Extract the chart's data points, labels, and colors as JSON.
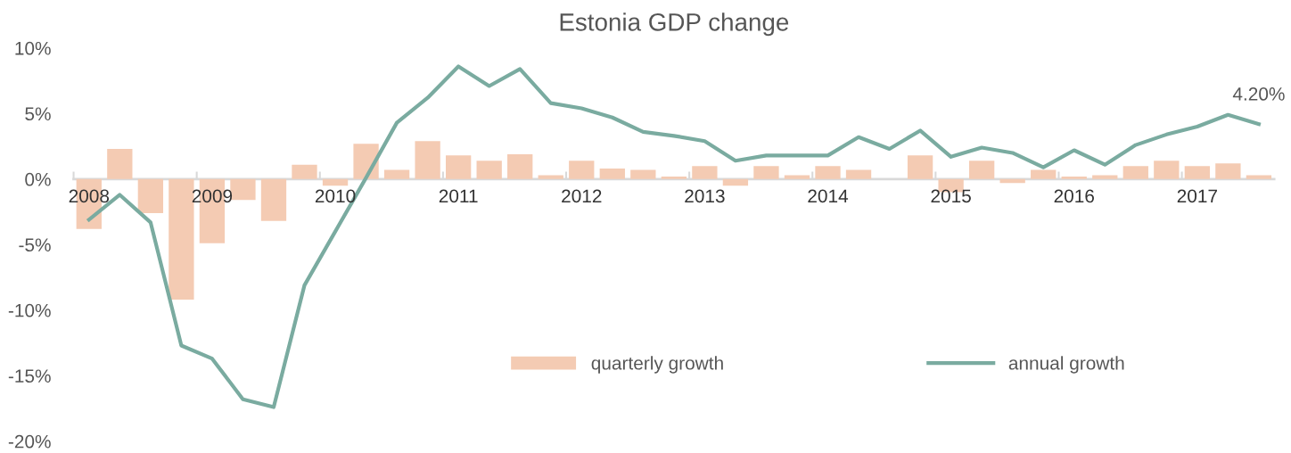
{
  "chart_data": {
    "type": "bar",
    "title": "Estonia GDP change",
    "categories": [
      "2008",
      null,
      null,
      null,
      "2009",
      null,
      null,
      null,
      "2010",
      null,
      null,
      null,
      "2011",
      null,
      null,
      null,
      "2012",
      null,
      null,
      null,
      "2013",
      null,
      null,
      null,
      "2014",
      null,
      null,
      null,
      "2015",
      null,
      null,
      null,
      "2016",
      null,
      null,
      null,
      "2017",
      null,
      null
    ],
    "series": [
      {
        "name": "quarterly growth",
        "color": "#f4cbb3",
        "values": [
          -3.8,
          2.3,
          -2.6,
          -9.2,
          -4.9,
          -1.6,
          -3.2,
          1.1,
          -0.5,
          2.7,
          0.7,
          2.9,
          1.8,
          1.4,
          1.9,
          0.3,
          1.4,
          0.8,
          0.7,
          0.2,
          1.0,
          -0.5,
          1.0,
          0.3,
          1.0,
          0.7,
          0,
          1.8,
          -1.0,
          1.4,
          -0.3,
          0.7,
          0.2,
          0.3,
          1.0,
          1.4,
          1.0,
          1.2,
          0.3
        ]
      },
      {
        "name": "annual growth",
        "type": "line",
        "color": "#7aaba0",
        "values": [
          -3.1,
          -1.2,
          -3.3,
          -12.7,
          -13.7,
          -16.8,
          -17.4,
          -8.1,
          -4.0,
          0.1,
          4.3,
          6.2,
          8.6,
          7.1,
          8.4,
          5.8,
          5.4,
          4.7,
          3.6,
          3.3,
          2.9,
          1.4,
          1.8,
          1.8,
          1.8,
          3.2,
          2.3,
          3.7,
          1.7,
          2.4,
          2.0,
          0.9,
          2.2,
          1.1,
          2.6,
          3.4,
          4.0,
          4.9,
          4.2
        ]
      }
    ],
    "ylim": [
      -20,
      10
    ],
    "yticks": [
      {
        "value": -20,
        "label": "-20%"
      },
      {
        "value": -15,
        "label": "-15%"
      },
      {
        "value": -10,
        "label": "-10%"
      },
      {
        "value": -5,
        "label": "-5%"
      },
      {
        "value": 0,
        "label": "0%"
      },
      {
        "value": 5,
        "label": "5%"
      },
      {
        "value": 10,
        "label": "10%"
      }
    ],
    "annotations": [
      {
        "text": "4.20%",
        "x": "2017",
        "y": 4.2
      }
    ],
    "grid": false,
    "legend": "bottom",
    "marker": "none",
    "line_style": "solid"
  }
}
